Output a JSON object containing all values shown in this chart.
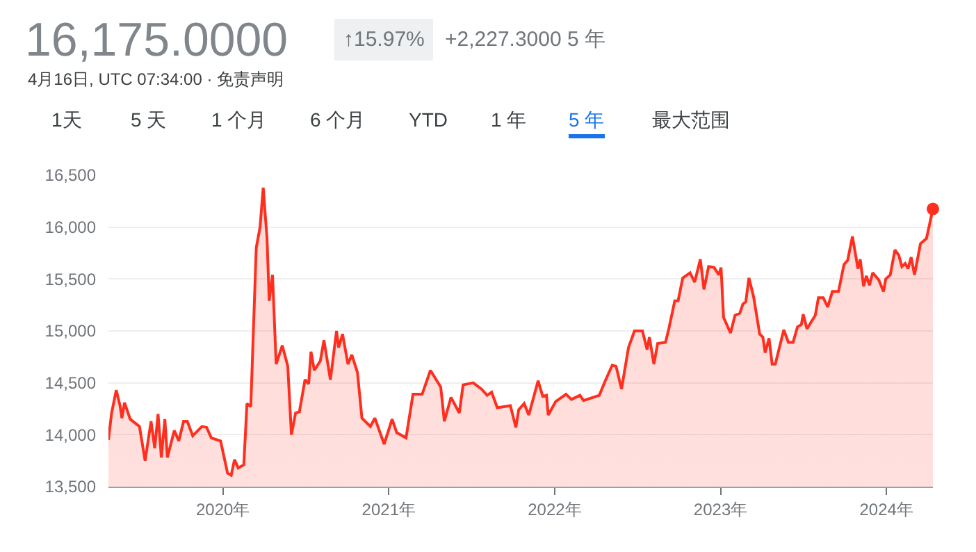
{
  "chart_data": {
    "type": "area",
    "title": "16,175.0000",
    "subtitle": "4月16日, UTC 07:34:00 · 免责声明",
    "annotations": [
      "↑15.97%",
      "+2,227.3000 5 年",
      "1天",
      "5 天",
      "1 个月",
      "6 个月",
      "YTD",
      "1 年",
      "5 年",
      "最大范围"
    ],
    "xlim": [
      2019.31,
      2024.28
    ],
    "xticks": [
      {
        "value": 2020,
        "label": "2020年"
      },
      {
        "value": 2021,
        "label": "2021年"
      },
      {
        "value": 2022,
        "label": "2022年"
      },
      {
        "value": 2023,
        "label": "2023年"
      },
      {
        "value": 2024,
        "label": "2024年"
      }
    ],
    "ylim": [
      13500,
      16500
    ],
    "yticks": [
      {
        "value": 13500,
        "label": "13,500"
      },
      {
        "value": 14000,
        "label": "14,000"
      },
      {
        "value": 14500,
        "label": "14,500"
      },
      {
        "value": 15000,
        "label": "15,000"
      },
      {
        "value": 15500,
        "label": "15,500"
      },
      {
        "value": 16000,
        "label": "16,000"
      },
      {
        "value": 16500,
        "label": "16,500"
      }
    ],
    "grid": "y",
    "x": [
      2019.31,
      2019.329,
      2019.357,
      2019.38,
      2019.391,
      2019.407,
      2019.441,
      2019.497,
      2019.531,
      2019.567,
      2019.589,
      2019.609,
      2019.629,
      2019.65,
      2019.665,
      2019.707,
      2019.734,
      2019.763,
      2019.785,
      2019.818,
      2019.874,
      2019.902,
      2019.93,
      2019.986,
      2020.028,
      2020.05,
      2020.07,
      2020.092,
      2020.126,
      2020.145,
      2020.168,
      2020.201,
      2020.224,
      2020.243,
      2020.266,
      2020.279,
      2020.299,
      2020.321,
      2020.358,
      2020.391,
      2020.413,
      2020.438,
      2020.461,
      2020.495,
      2020.517,
      2020.531,
      2020.551,
      2020.587,
      2020.609,
      2020.648,
      2020.685,
      2020.698,
      2020.721,
      2020.754,
      2020.777,
      2020.811,
      2020.838,
      2020.889,
      2020.916,
      2020.972,
      2021.02,
      2021.048,
      2021.104,
      2021.146,
      2021.201,
      2021.251,
      2021.313,
      2021.335,
      2021.375,
      2021.425,
      2021.448,
      2021.509,
      2021.559,
      2021.593,
      2021.62,
      2021.654,
      2021.733,
      2021.766,
      2021.783,
      2021.816,
      2021.844,
      2021.9,
      2021.928,
      2021.951,
      2021.961,
      2022.006,
      2022.068,
      2022.101,
      2022.152,
      2022.174,
      2022.269,
      2022.305,
      2022.347,
      2022.37,
      2022.403,
      2022.445,
      2022.481,
      2022.529,
      2022.557,
      2022.571,
      2022.598,
      2022.621,
      2022.668,
      2022.688,
      2022.724,
      2022.744,
      2022.772,
      2022.816,
      2022.844,
      2022.878,
      2022.9,
      2022.928,
      2022.961,
      2022.99,
      2023.003,
      2023.018,
      2023.06,
      2023.087,
      2023.116,
      2023.135,
      2023.152,
      2023.171,
      2023.199,
      2023.236,
      2023.255,
      2023.269,
      2023.292,
      2023.311,
      2023.33,
      2023.381,
      2023.409,
      2023.437,
      2023.464,
      2023.487,
      2023.498,
      2023.521,
      2023.571,
      2023.59,
      2023.619,
      2023.646,
      2023.674,
      2023.711,
      2023.744,
      2023.766,
      2023.795,
      2023.828,
      2023.842,
      2023.862,
      2023.879,
      2023.898,
      2023.917,
      2023.954,
      2023.982,
      2023.996,
      2024.023,
      2024.051,
      2024.074,
      2024.093,
      2024.113,
      2024.13,
      2024.149,
      2024.169,
      2024.205,
      2024.241,
      2024.28
    ],
    "series": [
      {
        "color": "#ff2f1f",
        "values": [
          13950,
          14210,
          14430,
          14280,
          14160,
          14310,
          14150,
          14080,
          13750,
          14130,
          13870,
          14200,
          13780,
          14150,
          13780,
          14040,
          13940,
          14130,
          14130,
          13990,
          14080,
          14070,
          13970,
          13940,
          13630,
          13610,
          13760,
          13680,
          13710,
          14300,
          14270,
          15800,
          16000,
          16380,
          15890,
          15290,
          15540,
          14680,
          14860,
          14660,
          14000,
          14210,
          14220,
          14530,
          14490,
          14800,
          14620,
          14710,
          14910,
          14530,
          15000,
          14840,
          14970,
          14680,
          14770,
          14600,
          14160,
          14080,
          14160,
          13910,
          14150,
          14020,
          13970,
          14390,
          14390,
          14620,
          14460,
          14130,
          14360,
          14210,
          14480,
          14500,
          14440,
          14380,
          14410,
          14260,
          14280,
          14070,
          14240,
          14300,
          14190,
          14520,
          14370,
          14380,
          14190,
          14320,
          14390,
          14340,
          14380,
          14330,
          14380,
          14520,
          14670,
          14660,
          14440,
          14840,
          15000,
          15000,
          14820,
          14940,
          14680,
          14880,
          14890,
          15020,
          15290,
          15290,
          15510,
          15560,
          15470,
          15690,
          15400,
          15620,
          15610,
          15540,
          15610,
          15130,
          14980,
          15150,
          15170,
          15260,
          15280,
          15510,
          15330,
          14970,
          14940,
          14790,
          14930,
          14680,
          14680,
          15010,
          14890,
          14890,
          15040,
          15060,
          15160,
          15020,
          15150,
          15320,
          15320,
          15230,
          15380,
          15380,
          15640,
          15680,
          15910,
          15600,
          15690,
          15430,
          15530,
          15440,
          15560,
          15490,
          15380,
          15500,
          15540,
          15780,
          15730,
          15620,
          15650,
          15600,
          15710,
          15540,
          15840,
          15890,
          16175
        ]
      }
    ]
  }
}
